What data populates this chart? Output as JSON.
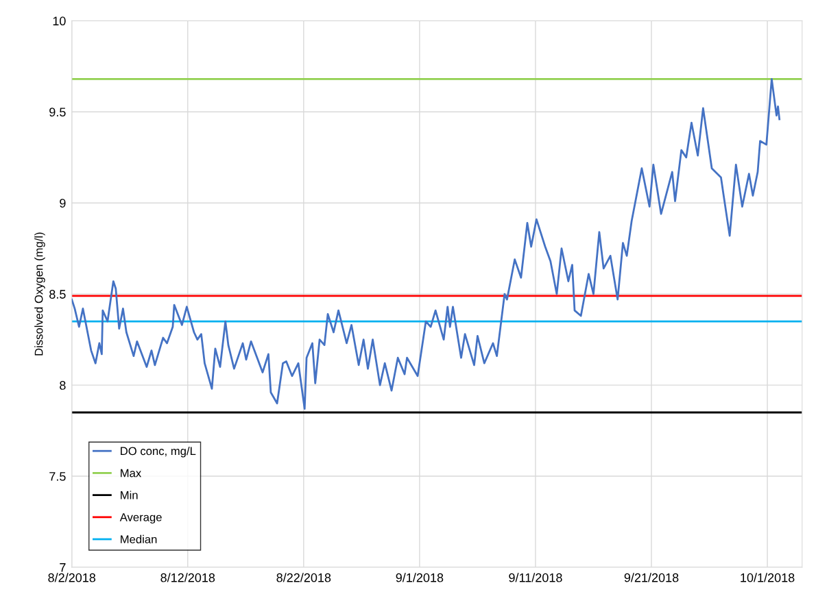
{
  "chart_data": {
    "type": "line",
    "ylabel": "Dissolved Oxygen (mg/l)",
    "xlim": [
      "2018-08-02",
      "2018-10-04"
    ],
    "xticks": [
      {
        "value": "2018-08-02",
        "label": "8/2/2018"
      },
      {
        "value": "2018-08-12",
        "label": "8/12/2018"
      },
      {
        "value": "2018-08-22",
        "label": "8/22/2018"
      },
      {
        "value": "2018-09-01",
        "label": "9/1/2018"
      },
      {
        "value": "2018-09-11",
        "label": "9/11/2018"
      },
      {
        "value": "2018-09-21",
        "label": "9/21/2018"
      },
      {
        "value": "2018-10-01",
        "label": "10/1/2018"
      }
    ],
    "ylim": [
      7,
      10
    ],
    "yticks": [
      7,
      7.5,
      8,
      8.5,
      9,
      9.5,
      10
    ],
    "grid": true,
    "legend": "bottom left",
    "marker": "none",
    "line_style": "solid",
    "series": [
      {
        "name": "DO conc, mg/L",
        "color": "#4472c4",
        "x": [
          "2018-08-02T00:00",
          "2018-08-02T06:00",
          "2018-08-02T15:00",
          "2018-08-02T23:00",
          "2018-08-03T16:00",
          "2018-08-04T01:00",
          "2018-08-04T09:00",
          "2018-08-04T14:00",
          "2018-08-04T16:00",
          "2018-08-05T02:00",
          "2018-08-05T14:00",
          "2018-08-05T19:00",
          "2018-08-06T02:00",
          "2018-08-06T10:00",
          "2018-08-06T17:00",
          "2018-08-07T08:00",
          "2018-08-07T15:00",
          "2018-08-08T11:00",
          "2018-08-08T21:00",
          "2018-08-09T04:00",
          "2018-08-09T21:00",
          "2018-08-10T05:00",
          "2018-08-10T17:00",
          "2018-08-10T20:00",
          "2018-08-11T12:00",
          "2018-08-11T22:00",
          "2018-08-12T13:00",
          "2018-08-12T20:00",
          "2018-08-13T04:00",
          "2018-08-13T11:00",
          "2018-08-14T02:00",
          "2018-08-14T09:00",
          "2018-08-14T19:00",
          "2018-08-15T06:00",
          "2018-08-15T12:00",
          "2018-08-16T00:00",
          "2018-08-16T18:00",
          "2018-08-17T01:00",
          "2018-08-17T11:00",
          "2018-08-18T11:00",
          "2018-08-18T23:00",
          "2018-08-19T04:00",
          "2018-08-19T17:00",
          "2018-08-20T05:00",
          "2018-08-20T12:00",
          "2018-08-21T00:00",
          "2018-08-21T13:00",
          "2018-08-22T02:00",
          "2018-08-22T06:00",
          "2018-08-22T18:00",
          "2018-08-23T00:00",
          "2018-08-23T09:00",
          "2018-08-23T19:00",
          "2018-08-24T02:00",
          "2018-08-24T14:00",
          "2018-08-25T00:00",
          "2018-08-25T17:00",
          "2018-08-26T03:00",
          "2018-08-26T18:00",
          "2018-08-27T04:00",
          "2018-08-27T13:00",
          "2018-08-27T23:00",
          "2018-08-28T14:00",
          "2018-08-29T00:00",
          "2018-08-29T14:00",
          "2018-08-30T03:00",
          "2018-08-30T17:00",
          "2018-08-30T22:00",
          "2018-08-31T20:00",
          "2018-09-01T13:00",
          "2018-09-01T23:00",
          "2018-09-02T09:00",
          "2018-09-03T02:00",
          "2018-09-03T10:00",
          "2018-09-03T15:00",
          "2018-09-03T21:00",
          "2018-09-04T14:00",
          "2018-09-04T22:00",
          "2018-09-05T17:00",
          "2018-09-06T00:00",
          "2018-09-06T14:00",
          "2018-09-07T08:00",
          "2018-09-07T16:00",
          "2018-09-08T08:00",
          "2018-09-08T13:00",
          "2018-09-09T05:00",
          "2018-09-09T18:00",
          "2018-09-10T07:00",
          "2018-09-10T15:00",
          "2018-09-11T02:00",
          "2018-09-11T20:00",
          "2018-09-12T07:00",
          "2018-09-12T20:00",
          "2018-09-13T06:00",
          "2018-09-13T20:00",
          "2018-09-14T04:00",
          "2018-09-14T09:00",
          "2018-09-14T22:00",
          "2018-09-15T14:00",
          "2018-09-16T00:00",
          "2018-09-16T12:00",
          "2018-09-16T21:00",
          "2018-09-17T11:00",
          "2018-09-18T02:00",
          "2018-09-18T13:00",
          "2018-09-18T21:00",
          "2018-09-19T07:00",
          "2018-09-19T15:00",
          "2018-09-20T04:00",
          "2018-09-20T20:00",
          "2018-09-21T04:00",
          "2018-09-21T20:00",
          "2018-09-22T19:00",
          "2018-09-23T01:00",
          "2018-09-23T14:00",
          "2018-09-24T00:00",
          "2018-09-24T11:00",
          "2018-09-25T00:00",
          "2018-09-25T11:00",
          "2018-09-26T05:00",
          "2018-09-27T00:00",
          "2018-09-27T05:00",
          "2018-09-27T18:00",
          "2018-09-28T07:00",
          "2018-09-28T20:00",
          "2018-09-29T10:00",
          "2018-09-29T18:00",
          "2018-09-30T04:00",
          "2018-09-30T09:00",
          "2018-09-30T22:00",
          "2018-10-01T09:00",
          "2018-10-01T19:00",
          "2018-10-01T22:00",
          "2018-10-02T01:00"
        ],
        "values": [
          8.47,
          8.42,
          8.32,
          8.42,
          8.19,
          8.12,
          8.23,
          8.17,
          8.41,
          8.35,
          8.57,
          8.53,
          8.31,
          8.42,
          8.29,
          8.16,
          8.24,
          8.1,
          8.19,
          8.11,
          8.26,
          8.23,
          8.32,
          8.44,
          8.33,
          8.43,
          8.29,
          8.25,
          8.28,
          8.12,
          7.98,
          8.2,
          8.1,
          8.35,
          8.22,
          8.09,
          8.23,
          8.14,
          8.24,
          8.07,
          8.17,
          7.96,
          7.9,
          8.12,
          8.13,
          8.05,
          8.12,
          7.87,
          8.15,
          8.23,
          8.01,
          8.25,
          8.22,
          8.39,
          8.29,
          8.41,
          8.23,
          8.33,
          8.11,
          8.25,
          8.09,
          8.25,
          8.0,
          8.12,
          7.97,
          8.15,
          8.06,
          8.15,
          8.05,
          8.35,
          8.32,
          8.41,
          8.25,
          8.43,
          8.32,
          8.43,
          8.15,
          8.28,
          8.11,
          8.27,
          8.12,
          8.23,
          8.16,
          8.5,
          8.47,
          8.69,
          8.59,
          8.89,
          8.76,
          8.91,
          8.76,
          8.68,
          8.5,
          8.75,
          8.57,
          8.66,
          8.41,
          8.38,
          8.61,
          8.5,
          8.84,
          8.64,
          8.71,
          8.47,
          8.78,
          8.71,
          8.9,
          9.01,
          9.19,
          8.98,
          9.21,
          8.94,
          9.17,
          9.01,
          9.29,
          9.25,
          9.44,
          9.26,
          9.52,
          9.19,
          9.14,
          9.05,
          8.82,
          9.21,
          8.98,
          9.16,
          9.04,
          9.17,
          9.34,
          9.32,
          9.68,
          9.48,
          9.53,
          9.46
        ]
      }
    ],
    "ref_lines": [
      {
        "axis": "y",
        "value": 9.68,
        "label": "Max",
        "color": "#92d050"
      },
      {
        "axis": "y",
        "value": 7.85,
        "label": "Min",
        "color": "#000000"
      },
      {
        "axis": "y",
        "value": 8.49,
        "label": "Average",
        "color": "#ff0000"
      },
      {
        "axis": "y",
        "value": 8.35,
        "label": "Median",
        "color": "#00b0f0"
      }
    ]
  }
}
